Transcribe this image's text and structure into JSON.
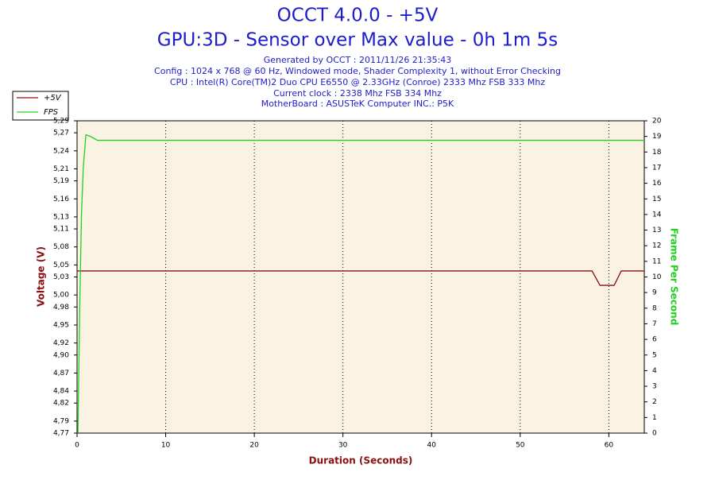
{
  "chart_data": {
    "type": "line",
    "title": "OCCT 4.0.0 - +5V",
    "subtitle": "GPU:3D - Sensor over Max value - 0h 1m 5s",
    "info_lines": [
      "Generated by OCCT : 2011/11/26 21:35:43",
      "Config : 1024 x 768 @ 60 Hz, Windowed mode, Shader Complexity 1, without Error Checking",
      "CPU : Intel(R) Core(TM)2 Duo CPU E6550 @ 2.33GHz (Conroe) 2333 Mhz FSB 333 Mhz",
      "Current clock : 2338 Mhz FSB 334 Mhz",
      "MotherBoard : ASUSTeK Computer INC.: P5K"
    ],
    "xlabel": "Duration (Seconds)",
    "ylabel": "Voltage (V)",
    "y2label": "Frame Per Second",
    "xlim": [
      0,
      64
    ],
    "xticks": [
      0,
      10,
      20,
      30,
      40,
      50,
      60
    ],
    "ylim": [
      4.77,
      5.29
    ],
    "yticks": [
      {
        "value": 4.77,
        "label": "4,77"
      },
      {
        "value": 4.79,
        "label": "4,79"
      },
      {
        "value": 4.82,
        "label": "4,82"
      },
      {
        "value": 4.84,
        "label": "4,84"
      },
      {
        "value": 4.87,
        "label": "4,87"
      },
      {
        "value": 4.9,
        "label": "4,90"
      },
      {
        "value": 4.92,
        "label": "4,92"
      },
      {
        "value": 4.95,
        "label": "4,95"
      },
      {
        "value": 4.98,
        "label": "4,98"
      },
      {
        "value": 5.0,
        "label": "5,00"
      },
      {
        "value": 5.03,
        "label": "5,03"
      },
      {
        "value": 5.05,
        "label": "5,05"
      },
      {
        "value": 5.08,
        "label": "5,08"
      },
      {
        "value": 5.11,
        "label": "5,11"
      },
      {
        "value": 5.13,
        "label": "5,13"
      },
      {
        "value": 5.16,
        "label": "5,16"
      },
      {
        "value": 5.19,
        "label": "5,19"
      },
      {
        "value": 5.21,
        "label": "5,21"
      },
      {
        "value": 5.24,
        "label": "5,24"
      },
      {
        "value": 5.27,
        "label": "5,27"
      },
      {
        "value": 5.29,
        "label": "5,29"
      }
    ],
    "y2lim": [
      0,
      20
    ],
    "y2ticks": [
      0,
      1,
      2,
      3,
      4,
      5,
      6,
      7,
      8,
      9,
      10,
      11,
      12,
      13,
      14,
      15,
      16,
      17,
      18,
      19,
      20
    ],
    "grid": "x",
    "legend": "top-left",
    "series": [
      {
        "name": "+5V",
        "color": "#8b1010",
        "x": [
          0,
          58.1,
          59,
          60.6,
          61.4,
          64
        ],
        "values": [
          5.04,
          5.04,
          5.016,
          5.016,
          5.04,
          5.04
        ]
      },
      {
        "name": "FPS",
        "color": "#22d022",
        "axis": "y2",
        "x": [
          0.1,
          0.3,
          0.5,
          0.7,
          1.0,
          1.5,
          2.3,
          64
        ],
        "values": [
          0,
          8,
          14,
          17,
          19.1,
          19,
          18.75,
          18.75
        ]
      }
    ]
  }
}
